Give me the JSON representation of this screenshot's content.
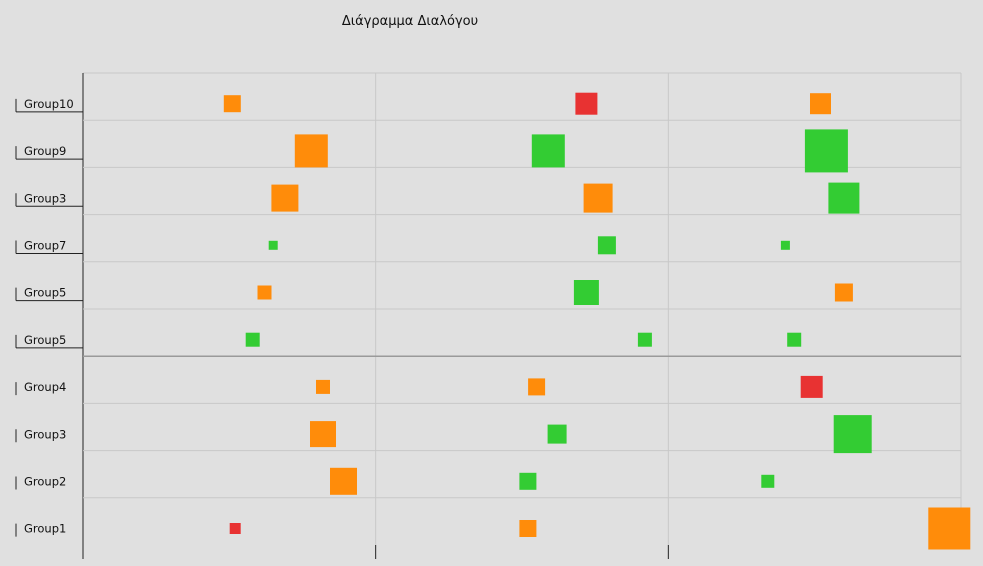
{
  "chart_data": {
    "type": "scatter",
    "title": "Διάγραμμα Διαλόγου",
    "rows": [
      "Group1",
      "Group2",
      "Group3",
      "Group4",
      "Group5",
      "Group5",
      "Group7",
      "Group3",
      "Group9",
      "Group10"
    ],
    "columns": 3,
    "grid": true,
    "legend": "none",
    "colors": {
      "orange": "#ff8c0a",
      "green": "#33cc33",
      "red": "#e83232"
    },
    "marks": [
      {
        "row": 0,
        "col": 0,
        "position": 0.52,
        "size": 11,
        "color": "red"
      },
      {
        "row": 0,
        "col": 1,
        "position": 0.52,
        "size": 17,
        "color": "orange"
      },
      {
        "row": 0,
        "col": 2,
        "position": 0.96,
        "size": 42,
        "color": "orange"
      },
      {
        "row": 1,
        "col": 0,
        "position": 0.89,
        "size": 27,
        "color": "orange"
      },
      {
        "row": 1,
        "col": 1,
        "position": 0.52,
        "size": 17,
        "color": "green"
      },
      {
        "row": 1,
        "col": 2,
        "position": 0.34,
        "size": 13,
        "color": "green"
      },
      {
        "row": 2,
        "col": 0,
        "position": 0.82,
        "size": 26,
        "color": "orange"
      },
      {
        "row": 2,
        "col": 1,
        "position": 0.62,
        "size": 19,
        "color": "green"
      },
      {
        "row": 2,
        "col": 2,
        "position": 0.63,
        "size": 38,
        "color": "green"
      },
      {
        "row": 3,
        "col": 0,
        "position": 0.82,
        "size": 14,
        "color": "orange"
      },
      {
        "row": 3,
        "col": 1,
        "position": 0.55,
        "size": 17,
        "color": "orange"
      },
      {
        "row": 3,
        "col": 2,
        "position": 0.49,
        "size": 22,
        "color": "red"
      },
      {
        "row": 4,
        "col": 0,
        "position": 0.58,
        "size": 14,
        "color": "green"
      },
      {
        "row": 4,
        "col": 1,
        "position": 0.92,
        "size": 14,
        "color": "green"
      },
      {
        "row": 4,
        "col": 2,
        "position": 0.43,
        "size": 14,
        "color": "green"
      },
      {
        "row": 5,
        "col": 0,
        "position": 0.62,
        "size": 14,
        "color": "orange"
      },
      {
        "row": 5,
        "col": 1,
        "position": 0.72,
        "size": 25,
        "color": "green"
      },
      {
        "row": 5,
        "col": 2,
        "position": 0.6,
        "size": 18,
        "color": "orange"
      },
      {
        "row": 6,
        "col": 0,
        "position": 0.65,
        "size": 9,
        "color": "green"
      },
      {
        "row": 6,
        "col": 1,
        "position": 0.79,
        "size": 18,
        "color": "green"
      },
      {
        "row": 6,
        "col": 2,
        "position": 0.4,
        "size": 9,
        "color": "green"
      },
      {
        "row": 7,
        "col": 0,
        "position": 0.69,
        "size": 27,
        "color": "orange"
      },
      {
        "row": 7,
        "col": 1,
        "position": 0.76,
        "size": 29,
        "color": "orange"
      },
      {
        "row": 7,
        "col": 2,
        "position": 0.6,
        "size": 31,
        "color": "green"
      },
      {
        "row": 8,
        "col": 0,
        "position": 0.78,
        "size": 33,
        "color": "orange"
      },
      {
        "row": 8,
        "col": 1,
        "position": 0.59,
        "size": 33,
        "color": "green"
      },
      {
        "row": 8,
        "col": 2,
        "position": 0.54,
        "size": 43,
        "color": "green"
      },
      {
        "row": 9,
        "col": 0,
        "position": 0.51,
        "size": 17,
        "color": "orange"
      },
      {
        "row": 9,
        "col": 1,
        "position": 0.72,
        "size": 22,
        "color": "red"
      },
      {
        "row": 9,
        "col": 2,
        "position": 0.52,
        "size": 21,
        "color": "orange"
      }
    ]
  }
}
